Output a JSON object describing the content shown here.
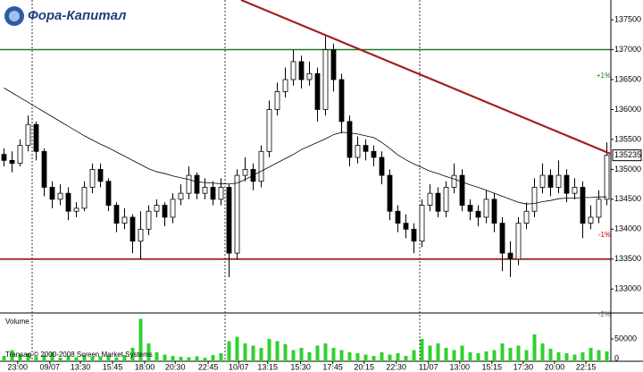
{
  "logo": "Фора-Капитал",
  "copyright": "Transaq © 2000-2008 Screen Market Systems",
  "chart_data": {
    "type": "candlestick",
    "xlim": [
      -0.5,
      75.5
    ],
    "xticks": [
      {
        "value": 1.7,
        "label": "23:00"
      },
      {
        "value": 5.7,
        "label": "09/07"
      },
      {
        "value": 9.5,
        "label": "13:30"
      },
      {
        "value": 13.5,
        "label": "15:45"
      },
      {
        "value": 17.5,
        "label": "18:00"
      },
      {
        "value": 21.3,
        "label": "20:30"
      },
      {
        "value": 25.4,
        "label": "22:45"
      },
      {
        "value": 29.2,
        "label": "10/07"
      },
      {
        "value": 32.8,
        "label": "13:15"
      },
      {
        "value": 36.9,
        "label": "15:30"
      },
      {
        "value": 40.9,
        "label": "17:45"
      },
      {
        "value": 44.8,
        "label": "20:15"
      },
      {
        "value": 48.8,
        "label": "22:30"
      },
      {
        "value": 52.8,
        "label": "11/07"
      },
      {
        "value": 56.7,
        "label": "13:00"
      },
      {
        "value": 60.7,
        "label": "15:15"
      },
      {
        "value": 64.6,
        "label": "17:30"
      },
      {
        "value": 68.5,
        "label": "20:00"
      },
      {
        "value": 72.4,
        "label": "22:15"
      }
    ],
    "ylim": [
      132600,
      137830
    ],
    "yticks": [
      133000,
      133500,
      134000,
      134500,
      135000,
      135500,
      136000,
      136500,
      137000,
      137500
    ],
    "ohlc": {
      "open": [
        135250,
        135150,
        135100,
        135400,
        135750,
        135300,
        134700,
        134500,
        134600,
        134300,
        134350,
        134700,
        135000,
        134800,
        134400,
        134100,
        134200,
        133800,
        134000,
        134300,
        134400,
        134200,
        134500,
        134600,
        134900,
        134600,
        134700,
        134500,
        134700,
        133600,
        134900,
        135000,
        134800,
        135300,
        136000,
        136300,
        136500,
        136800,
        136500,
        136600,
        136000,
        137000,
        136500,
        135800,
        135200,
        135400,
        135300,
        135200,
        134900,
        134300,
        134100,
        134000,
        133800,
        134400,
        134600,
        134300,
        134700,
        134900,
        134400,
        134300,
        134200,
        134500,
        134100,
        133600,
        133500,
        134100,
        134300,
        134700,
        134900,
        134700,
        134900,
        134600,
        134700,
        134100,
        134200,
        134500
      ],
      "high": [
        135350,
        135300,
        135500,
        135900,
        135800,
        135350,
        134800,
        134750,
        134700,
        134450,
        134800,
        135100,
        135100,
        134850,
        134450,
        134350,
        134250,
        134300,
        134400,
        134500,
        134450,
        134600,
        134750,
        135050,
        134950,
        134850,
        134800,
        134850,
        134750,
        135000,
        135200,
        135100,
        135400,
        136150,
        136450,
        136700,
        137000,
        136900,
        136800,
        136700,
        137250,
        137100,
        136600,
        135900,
        135550,
        135500,
        135400,
        135300,
        135000,
        134400,
        134250,
        134100,
        134500,
        134750,
        134700,
        134800,
        135100,
        135000,
        134500,
        134400,
        134650,
        134600,
        134200,
        133800,
        134200,
        134450,
        134850,
        135100,
        135000,
        135150,
        135000,
        134850,
        134800,
        134400,
        134650,
        135450
      ],
      "low": [
        135050,
        134950,
        135050,
        135300,
        135150,
        134550,
        134350,
        134400,
        134150,
        134200,
        134300,
        134600,
        134700,
        134300,
        133950,
        134000,
        133600,
        133500,
        133900,
        134200,
        134050,
        134100,
        134400,
        134500,
        134500,
        134500,
        134400,
        134400,
        133200,
        133500,
        134800,
        134650,
        134700,
        135200,
        135900,
        136200,
        136400,
        136350,
        136400,
        135800,
        135900,
        136300,
        135600,
        135050,
        135100,
        135150,
        135050,
        134750,
        134150,
        133950,
        133850,
        133600,
        133700,
        134300,
        134200,
        134200,
        134600,
        134300,
        134150,
        134050,
        134100,
        133950,
        133300,
        133200,
        133400,
        134000,
        134200,
        134600,
        134550,
        134600,
        134450,
        134500,
        133850,
        134000,
        134100,
        134400
      ],
      "close": [
        135150,
        135100,
        135400,
        135750,
        135300,
        134700,
        134500,
        134600,
        134300,
        134350,
        134700,
        135000,
        134800,
        134400,
        134100,
        134200,
        133800,
        134000,
        134300,
        134400,
        134200,
        134500,
        134600,
        134900,
        134600,
        134700,
        134500,
        134700,
        133600,
        134900,
        135000,
        134800,
        135300,
        136000,
        136300,
        136500,
        136800,
        136500,
        136600,
        136000,
        137000,
        136500,
        135800,
        135200,
        135400,
        135300,
        135200,
        134900,
        134300,
        134100,
        134000,
        133800,
        134400,
        134600,
        134300,
        134700,
        134900,
        134400,
        134300,
        134200,
        134500,
        134100,
        133600,
        133500,
        134100,
        134300,
        134700,
        134900,
        134700,
        134900,
        134600,
        134700,
        134100,
        134200,
        134500,
        135235
      ]
    },
    "moving_average": {
      "color": "#000000",
      "values": [
        136360,
        136280,
        136200,
        136120,
        136040,
        135960,
        135880,
        135800,
        135720,
        135640,
        135560,
        135490,
        135420,
        135360,
        135290,
        135220,
        135150,
        135080,
        135010,
        134960,
        134930,
        134890,
        134860,
        134830,
        134790,
        134780,
        134770,
        134760,
        134755,
        134770,
        134830,
        134900,
        134970,
        135040,
        135110,
        135180,
        135250,
        135330,
        135390,
        135450,
        135510,
        135580,
        135620,
        135610,
        135590,
        135560,
        135530,
        135450,
        135350,
        135240,
        135160,
        135090,
        135030,
        134970,
        134930,
        134880,
        134840,
        134790,
        134740,
        134700,
        134650,
        134600,
        134550,
        134500,
        134450,
        134420,
        134430,
        134460,
        134480,
        134510,
        134520,
        134520,
        134530,
        134530,
        134540,
        134540
      ]
    },
    "levels": [
      {
        "value": 137000,
        "color": "#1b7a1b"
      },
      {
        "value": 133500,
        "color": "#8b0000"
      }
    ],
    "trendline": {
      "color": "#a52020",
      "x": [
        29.5,
        75.5
      ],
      "y": [
        137830,
        135258
      ]
    },
    "percent_labels": [
      "+1%",
      "-1%",
      "-2%"
    ],
    "volume": {
      "title": "Volume",
      "color": "#2fd12f",
      "ylim": [
        0,
        104000
      ],
      "yticks": [
        0,
        50000
      ],
      "values": [
        12000,
        25000,
        15000,
        18000,
        10000,
        14000,
        20000,
        8000,
        12000,
        9000,
        15000,
        10000,
        11000,
        13000,
        9000,
        14000,
        30000,
        95000,
        40000,
        20000,
        15000,
        12000,
        10000,
        9000,
        11000,
        8000,
        14000,
        18000,
        45000,
        55000,
        40000,
        35000,
        30000,
        50000,
        45000,
        38000,
        25000,
        30000,
        20000,
        35000,
        40000,
        30000,
        25000,
        20000,
        18000,
        15000,
        12000,
        20000,
        15000,
        18000,
        12000,
        25000,
        50000,
        35000,
        40000,
        30000,
        25000,
        35000,
        20000,
        18000,
        22000,
        25000,
        40000,
        30000,
        35000,
        25000,
        60000,
        40000,
        28000,
        20000,
        18000,
        15000,
        20000,
        30000,
        25000,
        22000
      ]
    }
  }
}
